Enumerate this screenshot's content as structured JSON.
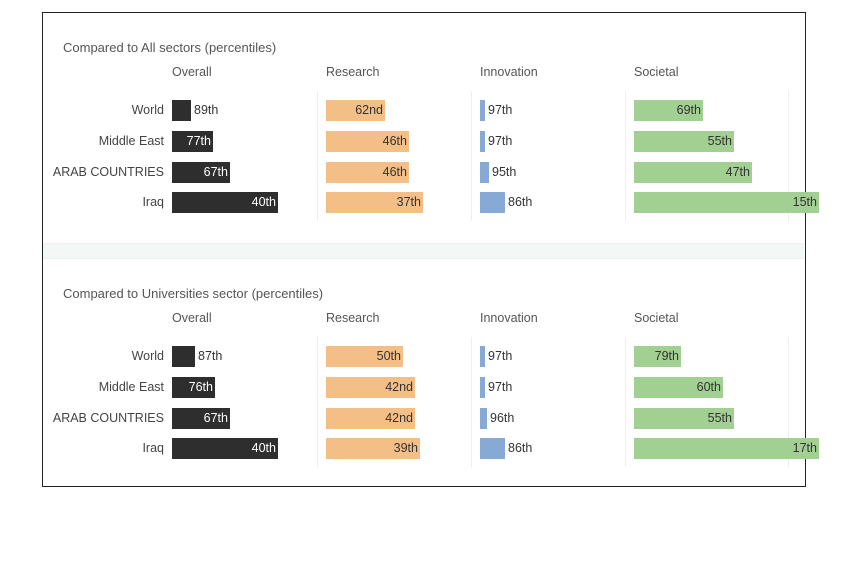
{
  "colors": {
    "overall": "#2e2e2e",
    "research": "#f4bf86",
    "innovation": "#86a9d6",
    "societal": "#a2cf92"
  },
  "chart_data": [
    {
      "type": "bar",
      "orientation": "horizontal",
      "title": "Compared to All sectors (percentiles)",
      "categories": [
        "World",
        "Middle East",
        "ARAB COUNTRIES",
        "Iraq"
      ],
      "series": [
        {
          "name": "Overall",
          "values": [
            89,
            77,
            67,
            40
          ],
          "labels": [
            "89th",
            "77th",
            "67th",
            "40th"
          ]
        },
        {
          "name": "Research",
          "values": [
            62,
            46,
            46,
            37
          ],
          "labels": [
            "62nd",
            "46th",
            "46th",
            "37th"
          ]
        },
        {
          "name": "Innovation",
          "values": [
            97,
            97,
            95,
            86
          ],
          "labels": [
            "97th",
            "97th",
            "95th",
            "86th"
          ]
        },
        {
          "name": "Societal",
          "values": [
            69,
            55,
            47,
            15
          ],
          "labels": [
            "69th",
            "55th",
            "47th",
            "15th"
          ]
        }
      ],
      "note": "Bar length is proportional to 100 minus the percentile (lower percentile = longer bar)",
      "xlim": [
        0,
        100
      ],
      "grid": false
    },
    {
      "type": "bar",
      "orientation": "horizontal",
      "title": "Compared to Universities sector (percentiles)",
      "categories": [
        "World",
        "Middle East",
        "ARAB COUNTRIES",
        "Iraq"
      ],
      "series": [
        {
          "name": "Overall",
          "values": [
            87,
            76,
            67,
            40
          ],
          "labels": [
            "87th",
            "76th",
            "67th",
            "40th"
          ]
        },
        {
          "name": "Research",
          "values": [
            50,
            42,
            42,
            39
          ],
          "labels": [
            "50th",
            "42nd",
            "42nd",
            "39th"
          ]
        },
        {
          "name": "Innovation",
          "values": [
            97,
            97,
            96,
            86
          ],
          "labels": [
            "97th",
            "97th",
            "96th",
            "86th"
          ]
        },
        {
          "name": "Societal",
          "values": [
            79,
            60,
            55,
            17
          ],
          "labels": [
            "79th",
            "60th",
            "55th",
            "17th"
          ]
        }
      ],
      "xlim": [
        0,
        100
      ],
      "grid": false
    }
  ]
}
